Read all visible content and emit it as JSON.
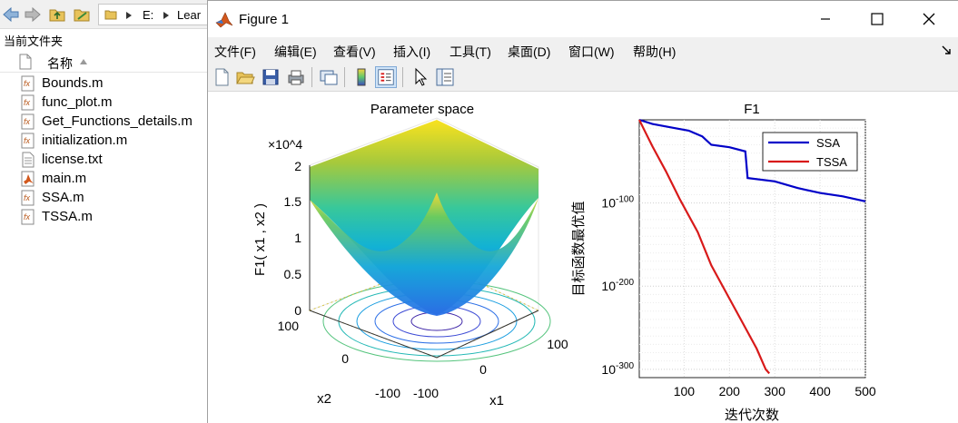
{
  "browser": {
    "path": [
      "E:",
      "Lear"
    ],
    "title": "当前文件夹",
    "column_header": "名称",
    "files": [
      {
        "name": "Bounds.m",
        "icon": "matlab-function-icon"
      },
      {
        "name": "func_plot.m",
        "icon": "matlab-function-icon"
      },
      {
        "name": "Get_Functions_details.m",
        "icon": "matlab-function-icon"
      },
      {
        "name": "initialization.m",
        "icon": "matlab-function-icon"
      },
      {
        "name": "license.txt",
        "icon": "text-file-icon"
      },
      {
        "name": "main.m",
        "icon": "matlab-script-icon"
      },
      {
        "name": "SSA.m",
        "icon": "matlab-function-icon"
      },
      {
        "name": "TSSA.m",
        "icon": "matlab-function-icon"
      }
    ]
  },
  "window": {
    "title": "Figure 1",
    "menus": [
      "文件(F)",
      "编辑(E)",
      "查看(V)",
      "插入(I)",
      "工具(T)",
      "桌面(D)",
      "窗口(W)",
      "帮助(H)"
    ]
  },
  "colors": {
    "ssa": "#0000c8",
    "tssa": "#d81a1a"
  },
  "chart_data": [
    {
      "type": "surface",
      "title": "Parameter space",
      "zlabel": "F1( x1 , x2 )",
      "xlabel": "x1",
      "ylabel": "x2",
      "z_multiplier": "×10^4",
      "x_ticks": [
        "-100",
        "0",
        "100"
      ],
      "y_ticks": [
        "-100",
        "0",
        "100"
      ],
      "z_ticks": [
        "0",
        "0.5",
        "1",
        "1.5",
        "2"
      ],
      "function": "x1^2 + x2^2",
      "xlim": [
        -100,
        100
      ],
      "ylim": [
        -100,
        100
      ],
      "zlim": [
        0,
        20000
      ],
      "colormap": "parula",
      "contour_below": true
    },
    {
      "type": "line",
      "title": "F1",
      "xlabel": "迭代次数",
      "ylabel": "目标函数最优值",
      "yscale": "log",
      "xlim": [
        1,
        500
      ],
      "x_ticks": [
        100,
        200,
        300,
        400,
        500
      ],
      "y_ticks": [
        -100,
        -200,
        -300
      ],
      "grid": true,
      "legend_position": "top-right",
      "series": [
        {
          "name": "SSA",
          "x": [
            1,
            30,
            80,
            110,
            140,
            160,
            200,
            235,
            240,
            300,
            350,
            400,
            450,
            500
          ],
          "log10_y": [
            0,
            -5,
            -10,
            -13,
            -20,
            -30,
            -33,
            -38,
            -70,
            -74,
            -82,
            -88,
            -92,
            -98
          ]
        },
        {
          "name": "TSSA",
          "x": [
            1,
            10,
            30,
            60,
            90,
            130,
            160,
            200,
            230,
            260,
            280,
            288
          ],
          "log10_y": [
            0,
            -10,
            -32,
            -62,
            -95,
            -135,
            -175,
            -215,
            -245,
            -275,
            -300,
            -305
          ]
        }
      ]
    }
  ]
}
